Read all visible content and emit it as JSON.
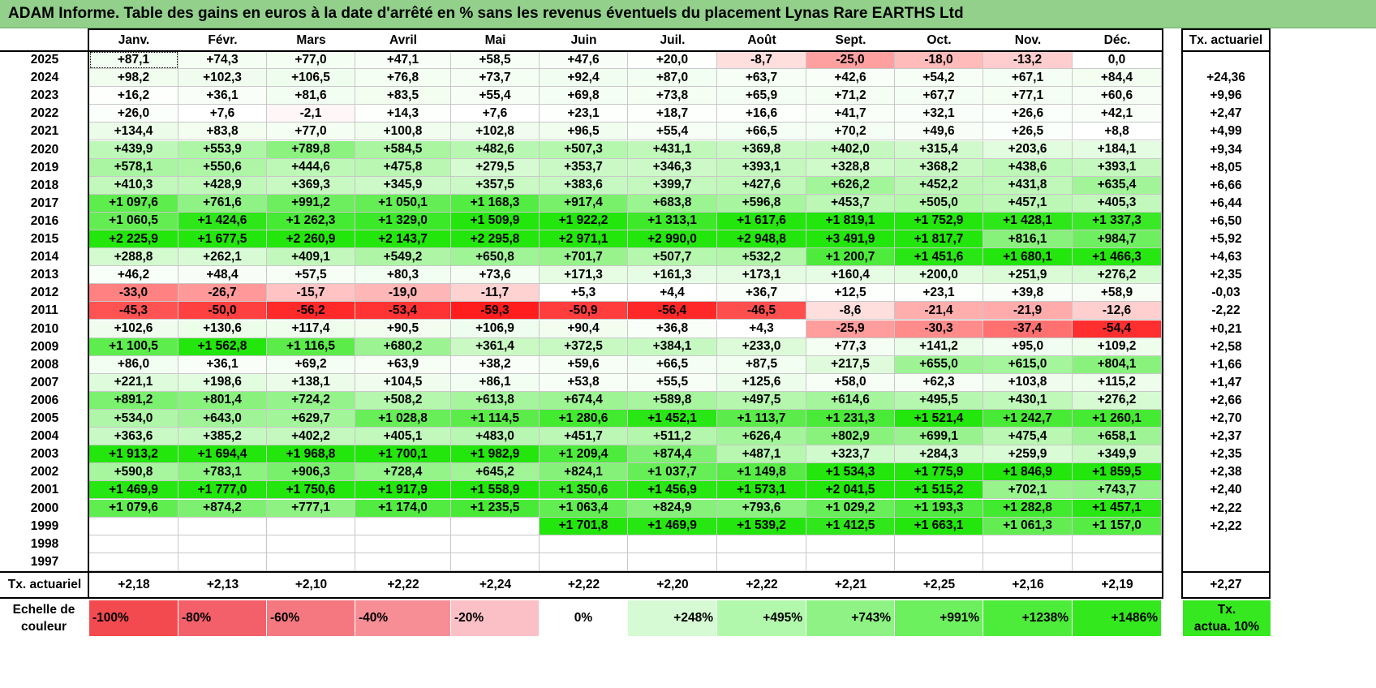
{
  "title": "ADAM Informe. Table des gains en euros à la date d'arrêté en % sans les revenus éventuels du placement Lynas Rare EARTHS Ltd",
  "months": [
    "Janv.",
    "Févr.",
    "Mars",
    "Avril",
    "Mai",
    "Juin",
    "Juil.",
    "Août",
    "Sept.",
    "Oct.",
    "Nov.",
    "Déc."
  ],
  "actuarial_header": "Tx. actuariel",
  "rows": [
    {
      "year": "2025",
      "values": [
        "+87,1",
        "+74,3",
        "+77,0",
        "+47,1",
        "+58,5",
        "+47,6",
        "+20,0",
        "-8,7",
        "-25,0",
        "-18,0",
        "-13,2",
        "0,0"
      ],
      "actuarial": ""
    },
    {
      "year": "2024",
      "values": [
        "+98,2",
        "+102,3",
        "+106,5",
        "+76,8",
        "+73,7",
        "+92,4",
        "+87,0",
        "+63,7",
        "+42,6",
        "+54,2",
        "+67,1",
        "+84,4"
      ],
      "actuarial": "+24,36"
    },
    {
      "year": "2023",
      "values": [
        "+16,2",
        "+36,1",
        "+81,6",
        "+83,5",
        "+55,4",
        "+69,8",
        "+73,8",
        "+65,9",
        "+71,2",
        "+67,7",
        "+77,1",
        "+60,6"
      ],
      "actuarial": "+9,96"
    },
    {
      "year": "2022",
      "values": [
        "+26,0",
        "+7,6",
        "-2,1",
        "+14,3",
        "+7,6",
        "+23,1",
        "+18,7",
        "+16,6",
        "+41,7",
        "+32,1",
        "+26,6",
        "+42,1"
      ],
      "actuarial": "+2,47"
    },
    {
      "year": "2021",
      "values": [
        "+134,4",
        "+83,8",
        "+77,0",
        "+100,8",
        "+102,8",
        "+96,5",
        "+55,4",
        "+66,5",
        "+70,2",
        "+49,6",
        "+26,5",
        "+8,8"
      ],
      "actuarial": "+4,99"
    },
    {
      "year": "2020",
      "values": [
        "+439,9",
        "+553,9",
        "+789,8",
        "+584,5",
        "+482,6",
        "+507,3",
        "+431,1",
        "+369,8",
        "+402,0",
        "+315,4",
        "+203,6",
        "+184,1"
      ],
      "actuarial": "+9,34"
    },
    {
      "year": "2019",
      "values": [
        "+578,1",
        "+550,6",
        "+444,6",
        "+475,8",
        "+279,5",
        "+353,7",
        "+346,3",
        "+393,1",
        "+328,8",
        "+368,2",
        "+438,6",
        "+393,1"
      ],
      "actuarial": "+8,05"
    },
    {
      "year": "2018",
      "values": [
        "+410,3",
        "+428,9",
        "+369,3",
        "+345,9",
        "+357,5",
        "+383,6",
        "+399,7",
        "+427,6",
        "+626,2",
        "+452,2",
        "+431,8",
        "+635,4"
      ],
      "actuarial": "+6,66"
    },
    {
      "year": "2017",
      "values": [
        "+1 097,6",
        "+761,6",
        "+991,2",
        "+1 050,1",
        "+1 168,3",
        "+917,4",
        "+683,8",
        "+596,8",
        "+453,7",
        "+505,0",
        "+457,1",
        "+405,3"
      ],
      "actuarial": "+6,44"
    },
    {
      "year": "2016",
      "values": [
        "+1 060,5",
        "+1 424,6",
        "+1 262,3",
        "+1 329,0",
        "+1 509,9",
        "+1 922,2",
        "+1 313,1",
        "+1 617,6",
        "+1 819,1",
        "+1 752,9",
        "+1 428,1",
        "+1 337,3"
      ],
      "actuarial": "+6,50"
    },
    {
      "year": "2015",
      "values": [
        "+2 225,9",
        "+1 677,5",
        "+2 260,9",
        "+2 143,7",
        "+2 295,8",
        "+2 971,1",
        "+2 990,0",
        "+2 948,8",
        "+3 491,9",
        "+1 817,7",
        "+816,1",
        "+984,7"
      ],
      "actuarial": "+5,92"
    },
    {
      "year": "2014",
      "values": [
        "+288,8",
        "+262,1",
        "+409,1",
        "+549,2",
        "+650,8",
        "+701,7",
        "+507,7",
        "+532,2",
        "+1 200,7",
        "+1 451,6",
        "+1 680,1",
        "+1 466,3"
      ],
      "actuarial": "+4,63"
    },
    {
      "year": "2013",
      "values": [
        "+46,2",
        "+48,4",
        "+57,5",
        "+80,3",
        "+73,6",
        "+171,3",
        "+161,3",
        "+173,1",
        "+160,4",
        "+200,0",
        "+251,9",
        "+276,2"
      ],
      "actuarial": "+2,35"
    },
    {
      "year": "2012",
      "values": [
        "-33,0",
        "-26,7",
        "-15,7",
        "-19,0",
        "-11,7",
        "+5,3",
        "+4,4",
        "+36,7",
        "+12,5",
        "+23,1",
        "+39,8",
        "+58,9"
      ],
      "actuarial": "-0,03"
    },
    {
      "year": "2011",
      "values": [
        "-45,3",
        "-50,0",
        "-56,2",
        "-53,4",
        "-59,3",
        "-50,9",
        "-56,4",
        "-46,5",
        "-8,6",
        "-21,4",
        "-21,9",
        "-12,6"
      ],
      "actuarial": "-2,22"
    },
    {
      "year": "2010",
      "values": [
        "+102,6",
        "+130,6",
        "+117,4",
        "+90,5",
        "+106,9",
        "+90,4",
        "+36,8",
        "+4,3",
        "-25,9",
        "-30,3",
        "-37,4",
        "-54,4"
      ],
      "actuarial": "+0,21"
    },
    {
      "year": "2009",
      "values": [
        "+1 100,5",
        "+1 562,8",
        "+1 116,5",
        "+680,2",
        "+361,4",
        "+372,5",
        "+384,1",
        "+233,0",
        "+77,3",
        "+141,2",
        "+95,0",
        "+109,2"
      ],
      "actuarial": "+2,58"
    },
    {
      "year": "2008",
      "values": [
        "+86,0",
        "+36,1",
        "+69,2",
        "+63,9",
        "+38,2",
        "+59,6",
        "+66,5",
        "+87,5",
        "+217,5",
        "+655,0",
        "+615,0",
        "+804,1"
      ],
      "actuarial": "+1,66"
    },
    {
      "year": "2007",
      "values": [
        "+221,1",
        "+198,6",
        "+138,1",
        "+104,5",
        "+86,1",
        "+53,8",
        "+55,5",
        "+125,6",
        "+58,0",
        "+62,3",
        "+103,8",
        "+115,2"
      ],
      "actuarial": "+1,47"
    },
    {
      "year": "2006",
      "values": [
        "+891,2",
        "+801,4",
        "+724,2",
        "+508,2",
        "+613,8",
        "+674,4",
        "+589,8",
        "+497,5",
        "+614,6",
        "+495,5",
        "+430,1",
        "+276,2"
      ],
      "actuarial": "+2,66"
    },
    {
      "year": "2005",
      "values": [
        "+534,0",
        "+643,0",
        "+629,7",
        "+1 028,8",
        "+1 114,5",
        "+1 280,6",
        "+1 452,1",
        "+1 113,7",
        "+1 231,3",
        "+1 521,4",
        "+1 242,7",
        "+1 260,1"
      ],
      "actuarial": "+2,70"
    },
    {
      "year": "2004",
      "values": [
        "+363,6",
        "+385,2",
        "+402,2",
        "+405,1",
        "+483,0",
        "+451,7",
        "+511,2",
        "+626,4",
        "+802,9",
        "+699,1",
        "+475,4",
        "+658,1"
      ],
      "actuarial": "+2,37"
    },
    {
      "year": "2003",
      "values": [
        "+1 913,2",
        "+1 694,4",
        "+1 968,8",
        "+1 700,1",
        "+1 982,9",
        "+1 209,4",
        "+874,4",
        "+487,1",
        "+323,7",
        "+284,3",
        "+259,9",
        "+349,9"
      ],
      "actuarial": "+2,35"
    },
    {
      "year": "2002",
      "values": [
        "+590,8",
        "+783,1",
        "+906,3",
        "+728,4",
        "+645,2",
        "+824,1",
        "+1 037,7",
        "+1 149,8",
        "+1 534,3",
        "+1 775,9",
        "+1 846,9",
        "+1 859,5"
      ],
      "actuarial": "+2,38"
    },
    {
      "year": "2001",
      "values": [
        "+1 469,9",
        "+1 777,0",
        "+1 750,6",
        "+1 917,9",
        "+1 558,9",
        "+1 350,6",
        "+1 456,9",
        "+1 573,1",
        "+2 041,5",
        "+1 515,2",
        "+702,1",
        "+743,7"
      ],
      "actuarial": "+2,40"
    },
    {
      "year": "2000",
      "values": [
        "+1 079,6",
        "+874,2",
        "+777,1",
        "+1 174,0",
        "+1 235,5",
        "+1 063,4",
        "+824,9",
        "+793,6",
        "+1 029,2",
        "+1 193,3",
        "+1 282,8",
        "+1 457,1"
      ],
      "actuarial": "+2,22"
    },
    {
      "year": "1999",
      "values": [
        "",
        "",
        "",
        "",
        "",
        "+1 701,8",
        "+1 469,9",
        "+1 539,2",
        "+1 412,5",
        "+1 663,1",
        "+1 061,3",
        "+1 157,0"
      ],
      "actuarial": "+2,22"
    },
    {
      "year": "1998",
      "values": [
        "",
        "",
        "",
        "",
        "",
        "",
        "",
        "",
        "",
        "",
        "",
        ""
      ],
      "actuarial": ""
    },
    {
      "year": "1997",
      "values": [
        "",
        "",
        "",
        "",
        "",
        "",
        "",
        "",
        "",
        "",
        "",
        ""
      ],
      "actuarial": ""
    }
  ],
  "footer": {
    "label": "Tx. actuariel",
    "values": [
      "+2,18",
      "+2,13",
      "+2,10",
      "+2,22",
      "+2,24",
      "+2,22",
      "+2,20",
      "+2,22",
      "+2,21",
      "+2,25",
      "+2,16",
      "+2,19"
    ],
    "total": "+2,27"
  },
  "legend": {
    "label_line1": "Echelle de",
    "label_line2": "couleur",
    "steps": [
      {
        "text": "-100%",
        "color": "#f24a4f"
      },
      {
        "text": "-80%",
        "color": "#f4606a"
      },
      {
        "text": "-60%",
        "color": "#f57780"
      },
      {
        "text": "-40%",
        "color": "#f78e96"
      },
      {
        "text": "-20%",
        "color": "#fac0c6"
      },
      {
        "text": "0%",
        "color": "#ffffff"
      },
      {
        "text": "+248%",
        "color": "#d6fbd4"
      },
      {
        "text": "+495%",
        "color": "#b2f8ac"
      },
      {
        "text": "+743%",
        "color": "#8ef384"
      },
      {
        "text": "+991%",
        "color": "#6df05d"
      },
      {
        "text": "+1238%",
        "color": "#4eec3a"
      },
      {
        "text": "+1486%",
        "color": "#33e91d"
      }
    ],
    "final_line1": "Tx.",
    "final_line2": "actua. 10%",
    "final_color": "#35e81f"
  }
}
